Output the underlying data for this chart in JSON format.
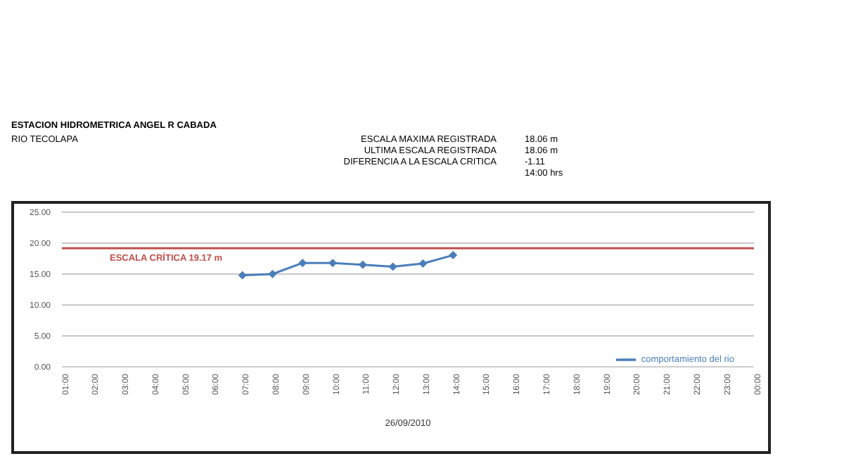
{
  "chart_data": {
    "type": "line",
    "title": "ESTACION HIDROMETRICA ANGEL R CABADA",
    "subtitle": "RIO TECOLAPA",
    "xlabel": "26/09/2010",
    "annotations": [
      "ESCALA MAXIMA REGISTRADA",
      "18.06 m",
      "ULTIMA ESCALA REGISTRADA",
      "18.06 m",
      "DIFERENCIA A LA ESCALA CRITICA",
      "-1.11",
      "14:00 hrs"
    ],
    "categories": [
      "01:00",
      "02:00",
      "03:00",
      "04:00",
      "05:00",
      "06:00",
      "07:00",
      "08:00",
      "09:00",
      "10:00",
      "11:00",
      "12:00",
      "13:00",
      "14:00",
      "15:00",
      "16:00",
      "17:00",
      "18:00",
      "19:00",
      "20:00",
      "21:00",
      "22:00",
      "23:00",
      "00:00"
    ],
    "series": [
      {
        "name": "comportamiento del rio",
        "color": "#4a7ebb",
        "values": [
          null,
          null,
          null,
          null,
          null,
          null,
          14.8,
          15.0,
          16.8,
          16.8,
          16.5,
          16.2,
          16.7,
          18.06,
          null,
          null,
          null,
          null,
          null,
          null,
          null,
          null,
          null,
          null
        ]
      }
    ],
    "ylim": [
      0,
      25
    ],
    "yticks": [
      {
        "value": 0,
        "label": "0.00"
      },
      {
        "value": 5,
        "label": "5.00"
      },
      {
        "value": 10,
        "label": "10.00"
      },
      {
        "value": 15,
        "label": "15.00"
      },
      {
        "value": 20,
        "label": "20.00"
      },
      {
        "value": 25,
        "label": "25.00"
      }
    ],
    "ref_lines": [
      {
        "axis": "y",
        "value": 19.17,
        "label": "ESCALA CRÍTICA 19.17 m",
        "color": "#c0504d"
      }
    ],
    "grid": "y",
    "legend": "bottom right",
    "marker": "diamond",
    "line_style": "solid"
  }
}
